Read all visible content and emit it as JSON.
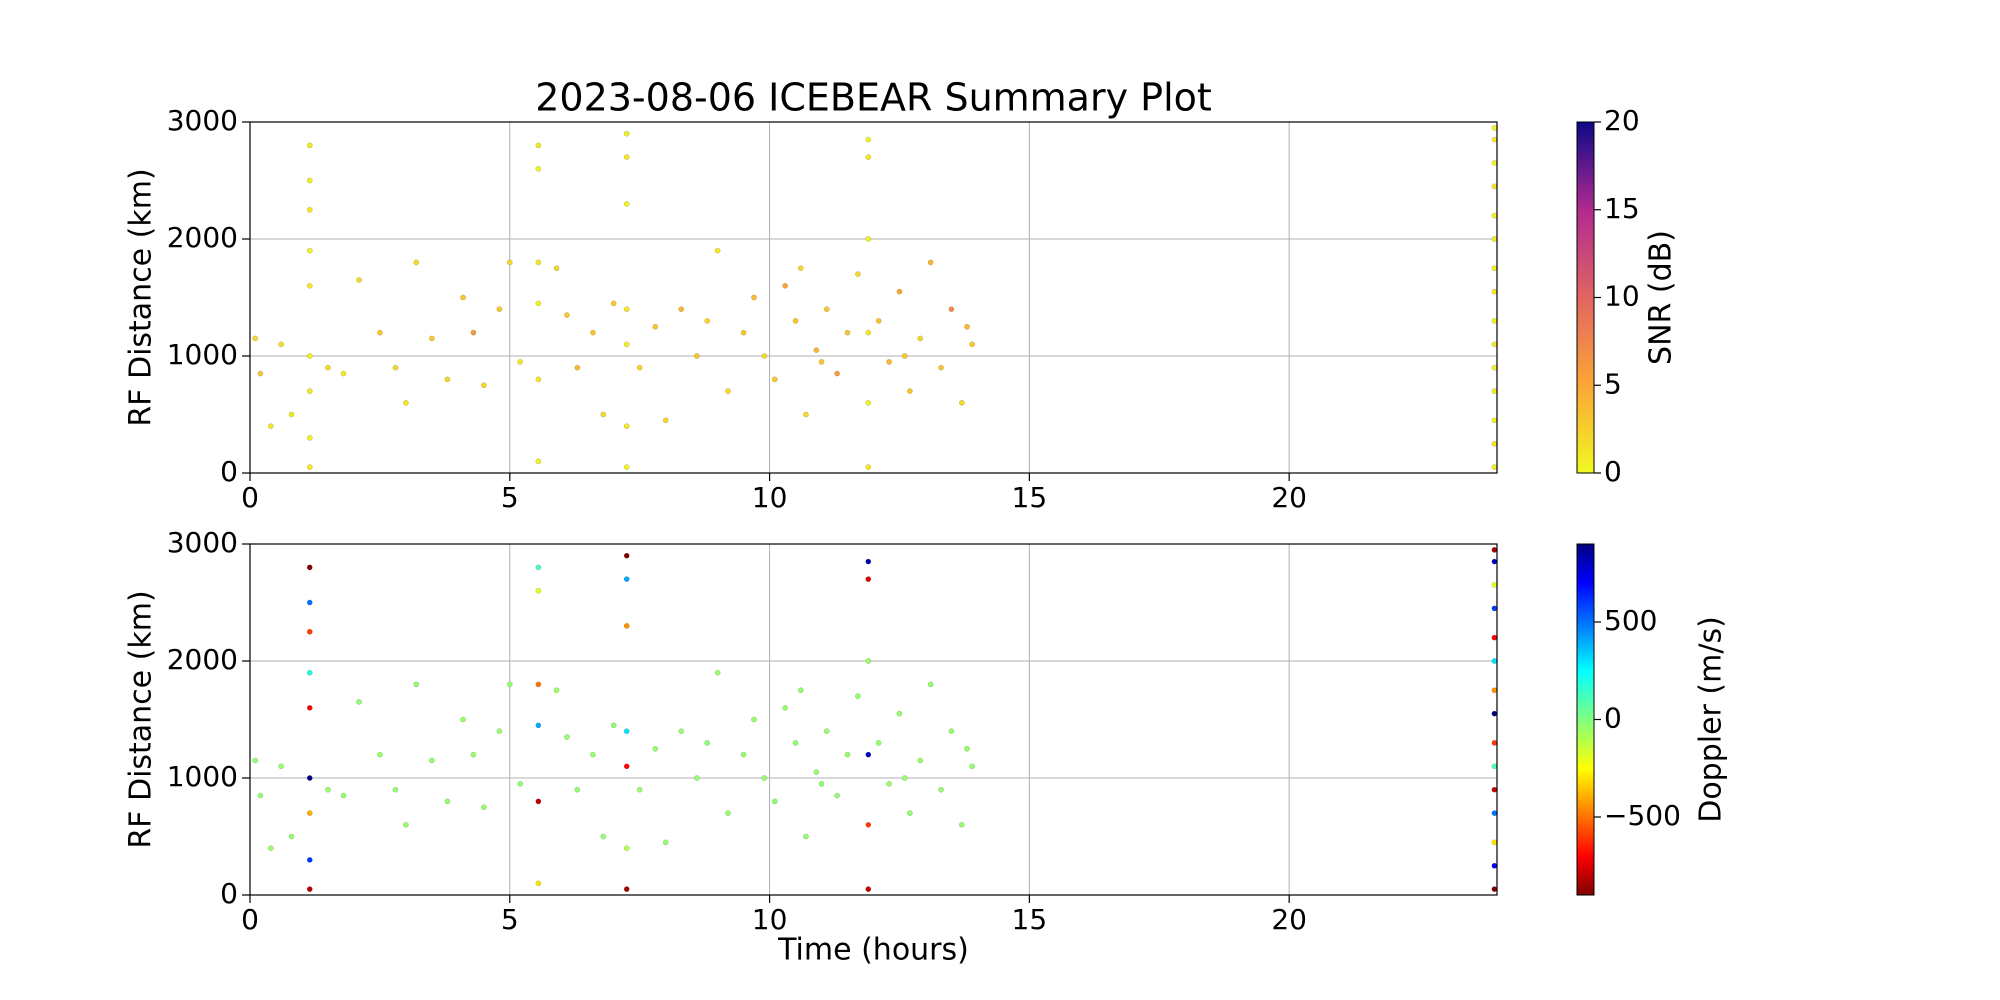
{
  "chart_data": [
    {
      "type": "scatter",
      "title": "2023-08-06 ICEBEAR Summary Plot",
      "ylabel": "RF Distance (km)",
      "xlim": [
        0,
        24
      ],
      "xticks": [
        0,
        5,
        10,
        15,
        20
      ],
      "ylim": [
        0,
        3000
      ],
      "yticks": [
        0,
        1000,
        2000,
        3000
      ],
      "grid": true,
      "colorbar": {
        "label": "SNR (dB)",
        "lim": [
          0,
          20
        ],
        "ticks": [
          0,
          5,
          10,
          15,
          20
        ],
        "colormap": "plasma_r"
      },
      "x": [
        0.1,
        0.2,
        0.4,
        0.6,
        0.8,
        1.5,
        1.8,
        2.1,
        2.5,
        2.8,
        3.0,
        3.2,
        3.5,
        3.8,
        4.1,
        4.3,
        4.5,
        4.8,
        5.0,
        5.2,
        5.9,
        6.1,
        6.3,
        6.6,
        6.8,
        7.0,
        7.5,
        7.8,
        8.0,
        8.3,
        8.6,
        8.8,
        9.0,
        9.2,
        9.5,
        9.7,
        9.9,
        10.1,
        10.3,
        10.5,
        10.7,
        10.9,
        11.1,
        11.3,
        11.5,
        11.7,
        12.1,
        12.3,
        12.5,
        12.7,
        12.9,
        13.1,
        13.3,
        13.5,
        13.7,
        13.9,
        13.8,
        11.0,
        10.6,
        12.6,
        1.15,
        1.15,
        1.15,
        1.15,
        1.15,
        1.15,
        1.15,
        1.15,
        1.15,
        5.55,
        5.55,
        5.55,
        5.55,
        5.55,
        5.55,
        7.25,
        7.25,
        7.25,
        7.25,
        7.25,
        7.25,
        7.25,
        11.9,
        11.9,
        11.9,
        11.9,
        11.9,
        11.9,
        23.95,
        23.95,
        23.95,
        23.95,
        23.95,
        23.95,
        23.95,
        23.95,
        23.95,
        23.95,
        23.95,
        23.95,
        23.95,
        23.95,
        23.95
      ],
      "y": [
        1150,
        850,
        400,
        1100,
        500,
        900,
        850,
        1650,
        1200,
        900,
        600,
        1800,
        1150,
        800,
        1500,
        1200,
        750,
        1400,
        1800,
        950,
        1750,
        1350,
        900,
        1200,
        500,
        1450,
        900,
        1250,
        450,
        1400,
        1000,
        1300,
        1900,
        700,
        1200,
        1500,
        1000,
        800,
        1600,
        1300,
        500,
        1050,
        1400,
        850,
        1200,
        1700,
        1300,
        950,
        1550,
        700,
        1150,
        1800,
        900,
        1400,
        600,
        1100,
        1250,
        950,
        1750,
        1000,
        50,
        300,
        700,
        1000,
        1600,
        1900,
        2250,
        2500,
        2800,
        100,
        800,
        1450,
        1800,
        2600,
        2800,
        50,
        400,
        1100,
        1400,
        2300,
        2700,
        2900,
        50,
        600,
        1200,
        2000,
        2700,
        2850,
        50,
        250,
        450,
        700,
        900,
        1100,
        1300,
        1550,
        1750,
        2000,
        2200,
        2450,
        2650,
        2850,
        2950
      ],
      "c": [
        2,
        3,
        1,
        2,
        1,
        2,
        1,
        2,
        3,
        2,
        1,
        2,
        3,
        2,
        3,
        6,
        2,
        3,
        2,
        1,
        2,
        3,
        4,
        3,
        2,
        3,
        2,
        3,
        2,
        4,
        3,
        2,
        1,
        2,
        3,
        4,
        2,
        3,
        5,
        3,
        2,
        4,
        3,
        6,
        3,
        2,
        3,
        4,
        5,
        3,
        2,
        4,
        3,
        7,
        2,
        3,
        4,
        3,
        2,
        3,
        1,
        0.5,
        1,
        0.5,
        1,
        0.5,
        1,
        0.5,
        1,
        0.5,
        1,
        0.5,
        1,
        0.5,
        1,
        0.5,
        1,
        0.5,
        1,
        0.5,
        1,
        0.5,
        1,
        0.5,
        1,
        0.5,
        1,
        0.5,
        0.5,
        1,
        0.5,
        1,
        0.5,
        1,
        0.5,
        1,
        0.5,
        1,
        0.5,
        1,
        0.5,
        1,
        0.5
      ]
    },
    {
      "type": "scatter",
      "xlabel": "Time (hours)",
      "ylabel": "RF Distance (km)",
      "xlim": [
        0,
        24
      ],
      "xticks": [
        0,
        5,
        10,
        15,
        20
      ],
      "ylim": [
        0,
        3000
      ],
      "yticks": [
        0,
        1000,
        2000,
        3000
      ],
      "grid": true,
      "colorbar": {
        "label": "Doppler (m/s)",
        "lim": [
          -900,
          900
        ],
        "ticks": [
          {
            "value": -500,
            "label": "−500"
          },
          0,
          500
        ],
        "colormap": "jet_r"
      },
      "x": [
        0.1,
        0.2,
        0.4,
        0.6,
        0.8,
        1.5,
        1.8,
        2.1,
        2.5,
        2.8,
        3.0,
        3.2,
        3.5,
        3.8,
        4.1,
        4.3,
        4.5,
        4.8,
        5.0,
        5.2,
        5.9,
        6.1,
        6.3,
        6.6,
        6.8,
        7.0,
        7.5,
        7.8,
        8.0,
        8.3,
        8.6,
        8.8,
        9.0,
        9.2,
        9.5,
        9.7,
        9.9,
        10.1,
        10.3,
        10.5,
        10.7,
        10.9,
        11.1,
        11.3,
        11.5,
        11.7,
        12.1,
        12.3,
        12.5,
        12.7,
        12.9,
        13.1,
        13.3,
        13.5,
        13.7,
        13.9,
        13.8,
        11.0,
        10.6,
        12.6,
        1.15,
        1.15,
        1.15,
        1.15,
        1.15,
        1.15,
        1.15,
        1.15,
        1.15,
        5.55,
        5.55,
        5.55,
        5.55,
        5.55,
        5.55,
        7.25,
        7.25,
        7.25,
        7.25,
        7.25,
        7.25,
        7.25,
        11.9,
        11.9,
        11.9,
        11.9,
        11.9,
        11.9,
        23.95,
        23.95,
        23.95,
        23.95,
        23.95,
        23.95,
        23.95,
        23.95,
        23.95,
        23.95,
        23.95,
        23.95,
        23.95,
        23.95,
        23.95
      ],
      "y": [
        1150,
        850,
        400,
        1100,
        500,
        900,
        850,
        1650,
        1200,
        900,
        600,
        1800,
        1150,
        800,
        1500,
        1200,
        750,
        1400,
        1800,
        950,
        1750,
        1350,
        900,
        1200,
        500,
        1450,
        900,
        1250,
        450,
        1400,
        1000,
        1300,
        1900,
        700,
        1200,
        1500,
        1000,
        800,
        1600,
        1300,
        500,
        1050,
        1400,
        850,
        1200,
        1700,
        1300,
        950,
        1550,
        700,
        1150,
        1800,
        900,
        1400,
        600,
        1100,
        1250,
        950,
        1750,
        1000,
        50,
        300,
        700,
        1000,
        1600,
        1900,
        2250,
        2500,
        2800,
        100,
        800,
        1450,
        1800,
        2600,
        2800,
        50,
        400,
        1100,
        1400,
        2300,
        2700,
        2900,
        50,
        600,
        1200,
        2000,
        2700,
        2850,
        50,
        250,
        450,
        700,
        900,
        1100,
        1300,
        1550,
        1750,
        2000,
        2200,
        2450,
        2650,
        2850,
        2950
      ],
      "c": [
        -40,
        -30,
        -50,
        -40,
        -35,
        -45,
        -40,
        -30,
        -50,
        -40,
        -45,
        -35,
        -40,
        -30,
        -50,
        -40,
        -35,
        -45,
        -40,
        -30,
        -50,
        -40,
        -35,
        -45,
        -40,
        -30,
        -50,
        -40,
        -35,
        -45,
        -40,
        -30,
        -50,
        -40,
        -35,
        -45,
        -40,
        -30,
        -50,
        -40,
        -35,
        -45,
        -40,
        -30,
        -50,
        -40,
        -35,
        -45,
        -40,
        -30,
        -50,
        -40,
        -35,
        -45,
        -40,
        -30,
        -50,
        -40,
        -35,
        -45,
        -800,
        600,
        -400,
        900,
        -700,
        200,
        -600,
        500,
        -900,
        -300,
        -800,
        400,
        -500,
        -200,
        100,
        -850,
        -100,
        -700,
        300,
        -450,
        400,
        -900,
        -800,
        -600,
        800,
        -50,
        -750,
        850,
        -900,
        700,
        -300,
        500,
        -800,
        100,
        -600,
        900,
        -450,
        300,
        -700,
        600,
        -200,
        800,
        -850
      ]
    }
  ]
}
